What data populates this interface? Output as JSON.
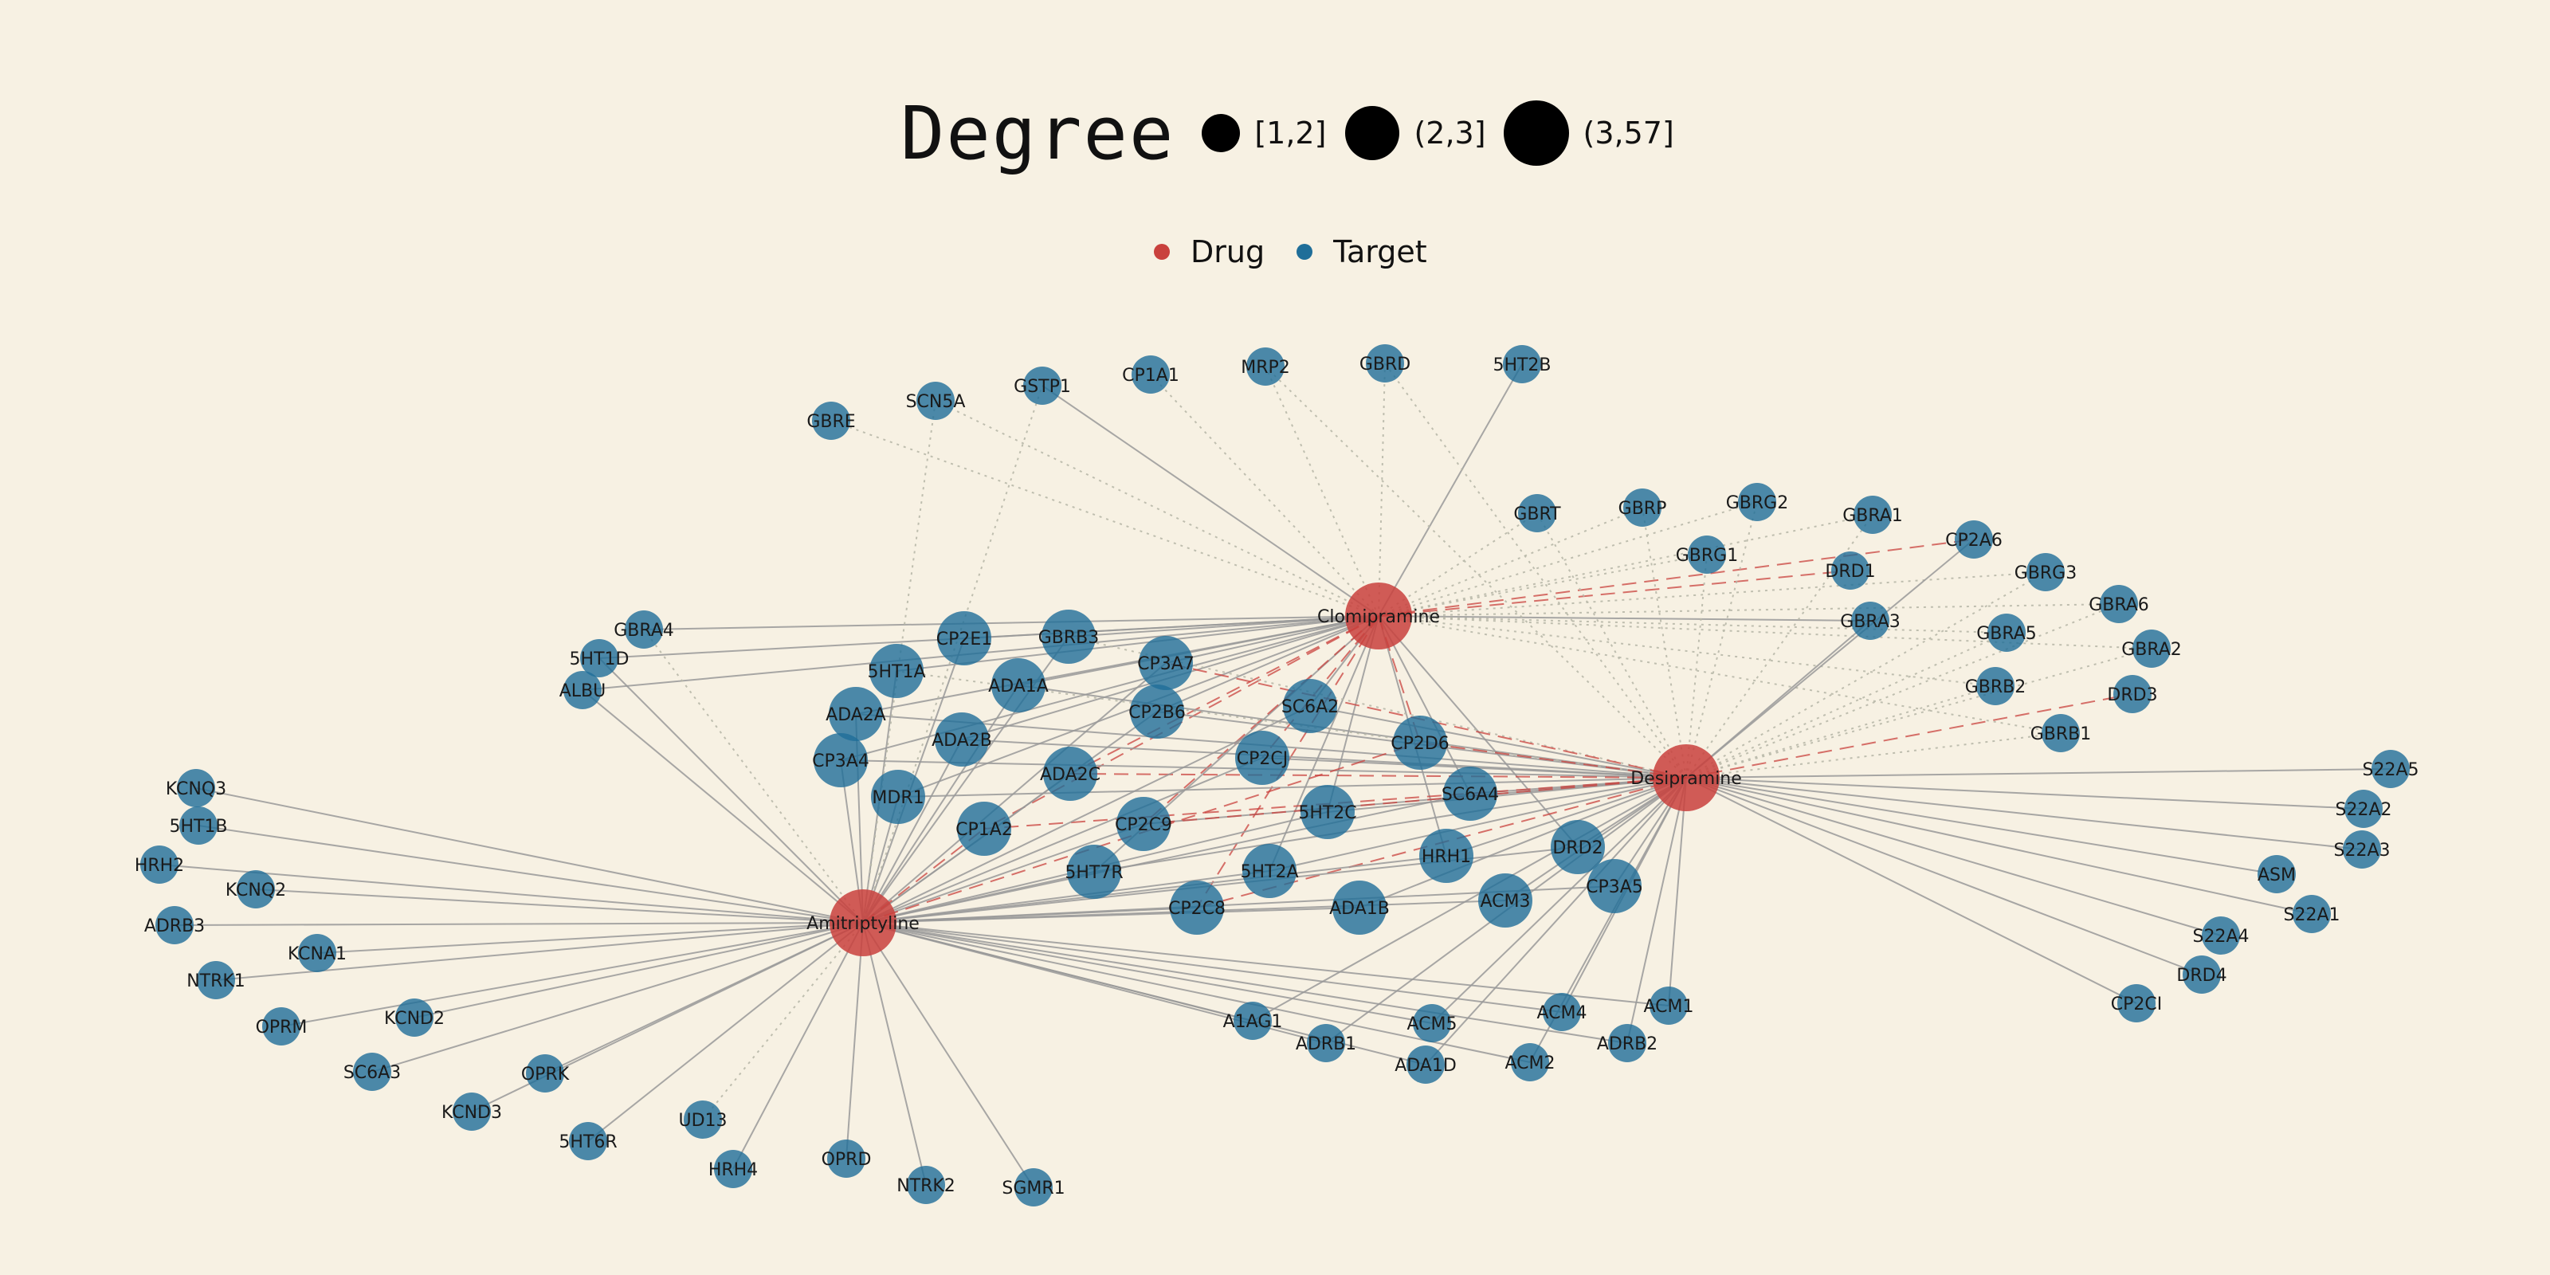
{
  "legend_degree": {
    "title": "Degree",
    "bins": [
      "[1,2]",
      "(2,3]",
      "(3,57]"
    ]
  },
  "legend_type": {
    "items": [
      {
        "label": "Drug",
        "color": "#c9413d"
      },
      {
        "label": "Target",
        "color": "#1f6e99"
      }
    ]
  },
  "colors": {
    "background": "#f7f1e3",
    "drug": "#c9413d",
    "target": "#1f6e99",
    "edge_solid": "#999999",
    "edge_dotted": "#b8b8a8",
    "edge_dashed": "#c9413d"
  },
  "drugs": [
    "Clomipramine",
    "Desipramine",
    "Amitriptyline"
  ],
  "targets": [
    "GBRE",
    "SCN5A",
    "GSTP1",
    "CP1A1",
    "MRP2",
    "GBRD",
    "5HT2B",
    "GBRT",
    "GBRP",
    "GBRG2",
    "GBRA1",
    "GBRG1",
    "DRD1",
    "CP2A6",
    "GBRG3",
    "GBRA3",
    "GBRA5",
    "GBRA6",
    "GBRA2",
    "GBRB2",
    "DRD3",
    "GBRB1",
    "GBRA4",
    "5HT1D",
    "ALBU",
    "CP2E1",
    "GBRB3",
    "5HT1A",
    "ADA1A",
    "CP3A7",
    "ADA2A",
    "CP2B6",
    "SC6A2",
    "CP3A4",
    "ADA2B",
    "ADA2C",
    "CP2CJ",
    "CP2D6",
    "MDR1",
    "SC6A4",
    "5HT2C",
    "CP1A2",
    "CP2C9",
    "HRH1",
    "DRD2",
    "5HT7R",
    "5HT2A",
    "CP2C8",
    "ADA1B",
    "ACM3",
    "CP3A5",
    "KCNQ3",
    "5HT1B",
    "HRH2",
    "KCNQ2",
    "ADRB3",
    "KCNA1",
    "NTRK1",
    "OPRM",
    "KCND2",
    "SC6A3",
    "OPRK",
    "KCND3",
    "UD13",
    "5HT6R",
    "HRH4",
    "OPRD",
    "NTRK2",
    "SGMR1",
    "A1AG1",
    "ADRB1",
    "ACM5",
    "ADA1D",
    "ACM4",
    "ACM2",
    "ADRB2",
    "ACM1",
    "S22A5",
    "S22A2",
    "S22A3",
    "ASM",
    "S22A1",
    "S22A4",
    "DRD4",
    "CP2CI"
  ],
  "edges": {
    "Clomipramine": {
      "solid": [
        "GSTP1",
        "5HT2B",
        "GBRA3",
        "GBRA4",
        "5HT1D",
        "ALBU",
        "CP2E1",
        "GBRB3",
        "5HT1A",
        "ADA1A",
        "CP3A7",
        "SC6A2",
        "ADA2A",
        "CP3A4",
        "MDR1",
        "ADA2B",
        "CP2B6",
        "SC6A4",
        "5HT2C",
        "5HT2A",
        "HRH1",
        "DRD2",
        "5HT7R"
      ],
      "dotted": [
        "GBRE",
        "SCN5A",
        "CP1A1",
        "MRP2",
        "GBRD",
        "GBRT",
        "GBRP",
        "GBRG2",
        "GBRA1",
        "GBRG1",
        "GBRG3",
        "GBRA5",
        "GBRA6",
        "GBRA2",
        "GBRB2",
        "GBRB1"
      ],
      "dashed": [
        "CP2A6",
        "DRD1",
        "CP2D6",
        "CP1A2",
        "CP2C9",
        "ADA2C",
        "CP2CJ",
        "CP2C8"
      ]
    },
    "Desipramine": {
      "solid": [
        "GBRA3",
        "CP2A6",
        "SC6A2",
        "CP2B6",
        "5HT2C",
        "HRH1",
        "DRD2",
        "CP3A5",
        "ADA1B",
        "ACM3",
        "CP2C9",
        "5HT7R",
        "5HT2A",
        "CP3A4",
        "ADA1A",
        "ADA2A",
        "ADA2B",
        "MDR1",
        "SC6A4",
        "CP2CJ",
        "A1AG1",
        "ADRB1",
        "ACM5",
        "ADA1D",
        "ACM4",
        "ACM2",
        "ADRB2",
        "ACM1",
        "S22A5",
        "S22A2",
        "S22A3",
        "ASM",
        "S22A1",
        "S22A4",
        "DRD4",
        "CP2CI"
      ],
      "dotted": [
        "GBRT",
        "GBRP",
        "GBRG2",
        "GBRA1",
        "GBRG1",
        "GBRG3",
        "GBRA5",
        "GBRA6",
        "GBRA2",
        "GBRB2",
        "GBRB1",
        "GBRD",
        "MRP2",
        "5HT1A",
        "GBRB3"
      ],
      "dashed": [
        "DRD3",
        "CP2D6",
        "CP1A2",
        "CP2C8",
        "CP2C9",
        "ADA2C",
        "CP3A7"
      ]
    },
    "Amitriptyline": {
      "solid": [
        "ALBU",
        "5HT1D",
        "CP2E1",
        "GBRB3",
        "5HT1A",
        "ADA1A",
        "CP3A7",
        "ADA2A",
        "CP3A4",
        "ADA2B",
        "MDR1",
        "ADA2C",
        "CP2CJ",
        "CP2B6",
        "SC6A2",
        "SC6A4",
        "5HT2C",
        "CP2C9",
        "5HT7R",
        "5HT2A",
        "CP2C8",
        "ADA1B",
        "HRH1",
        "ACM3",
        "DRD2",
        "CP3A5",
        "A1AG1",
        "ADRB1",
        "ACM5",
        "ADA1D",
        "ACM4",
        "ACM2",
        "ADRB2",
        "ACM1",
        "KCNQ3",
        "5HT1B",
        "HRH2",
        "KCNQ2",
        "ADRB3",
        "KCNA1",
        "NTRK1",
        "OPRM",
        "KCND2",
        "SC6A3",
        "OPRK",
        "KCND3",
        "5HT6R",
        "HRH4",
        "OPRD",
        "NTRK2",
        "SGMR1"
      ],
      "dotted": [
        "GBRA4",
        "UD13",
        "GSTP1",
        "SCN5A"
      ],
      "dashed": [
        "CP1A2",
        "CP2D6"
      ]
    }
  }
}
